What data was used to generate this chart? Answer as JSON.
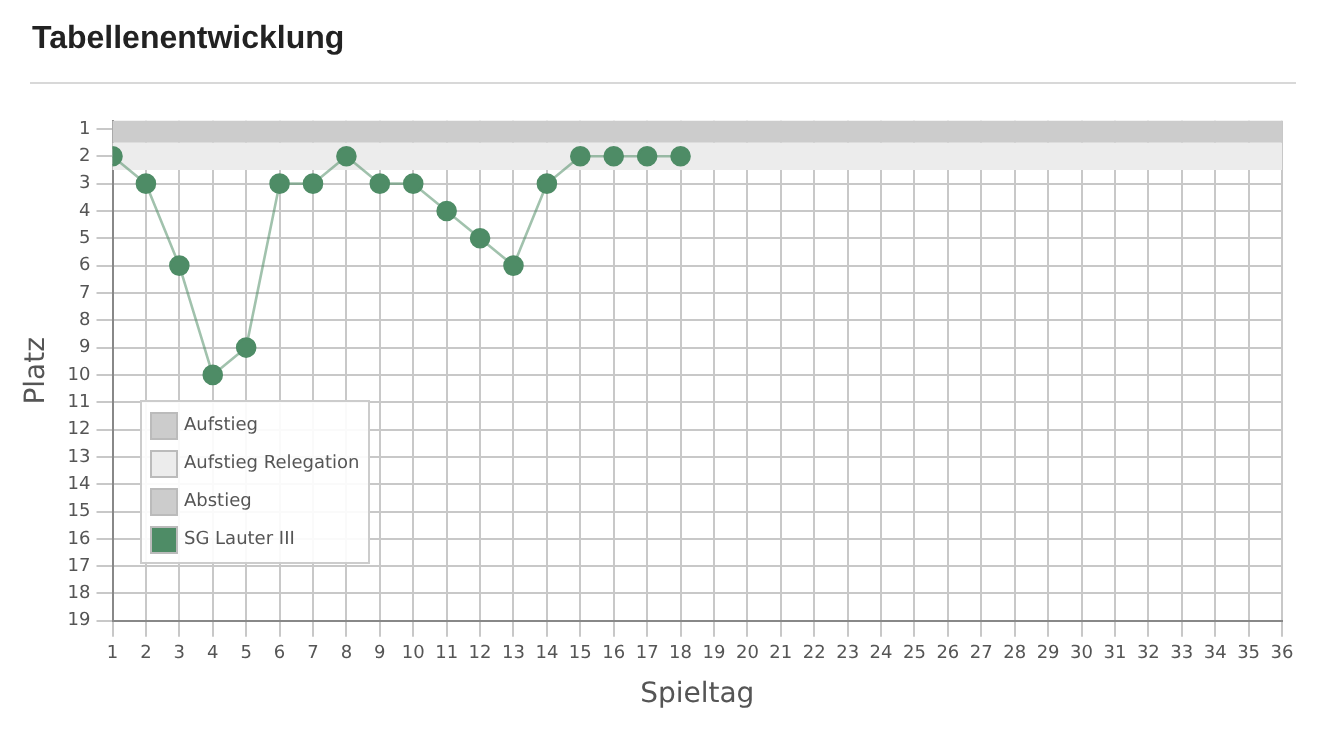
{
  "chart_data": {
    "type": "line",
    "title": "Tabellenentwicklung",
    "xlabel": "Spieltag",
    "ylabel": "Platz",
    "x": [
      1,
      2,
      3,
      4,
      5,
      6,
      7,
      8,
      9,
      10,
      11,
      12,
      13,
      14,
      15,
      16,
      17,
      18
    ],
    "series": [
      {
        "name": "Abstieg",
        "color": "#cccccc",
        "values": [
          null,
          null,
          null,
          null,
          null,
          null,
          null,
          null,
          null,
          null,
          null,
          null,
          null,
          null,
          null,
          null,
          null,
          null
        ]
      },
      {
        "name": "SG Lauter III",
        "color": "#4e8c66",
        "values": [
          2,
          3,
          6,
          10,
          9,
          3,
          3,
          2,
          3,
          3,
          4,
          5,
          6,
          3,
          2,
          2,
          2,
          2
        ]
      }
    ],
    "xlim": [
      1,
      36
    ],
    "xticks": [
      1,
      2,
      3,
      4,
      5,
      6,
      7,
      8,
      9,
      10,
      11,
      12,
      13,
      14,
      15,
      16,
      17,
      18,
      19,
      20,
      21,
      22,
      23,
      24,
      25,
      26,
      27,
      28,
      29,
      30,
      31,
      32,
      33,
      34,
      35,
      36
    ],
    "ylim": [
      19,
      0.7
    ],
    "yticks": [
      1,
      2,
      3,
      4,
      5,
      6,
      7,
      8,
      9,
      10,
      11,
      12,
      13,
      14,
      15,
      16,
      17,
      18,
      19
    ],
    "bands": [
      {
        "axis": "y",
        "from": 0.7,
        "to": 1.5,
        "label": "Aufstieg",
        "color": "#cccccc"
      },
      {
        "axis": "y",
        "from": 1.5,
        "to": 2.5,
        "label": "Aufstieg Relegation",
        "color": "#ececec"
      }
    ],
    "grid": true,
    "legend": "left",
    "marker": "circle",
    "line_style": "solid"
  }
}
